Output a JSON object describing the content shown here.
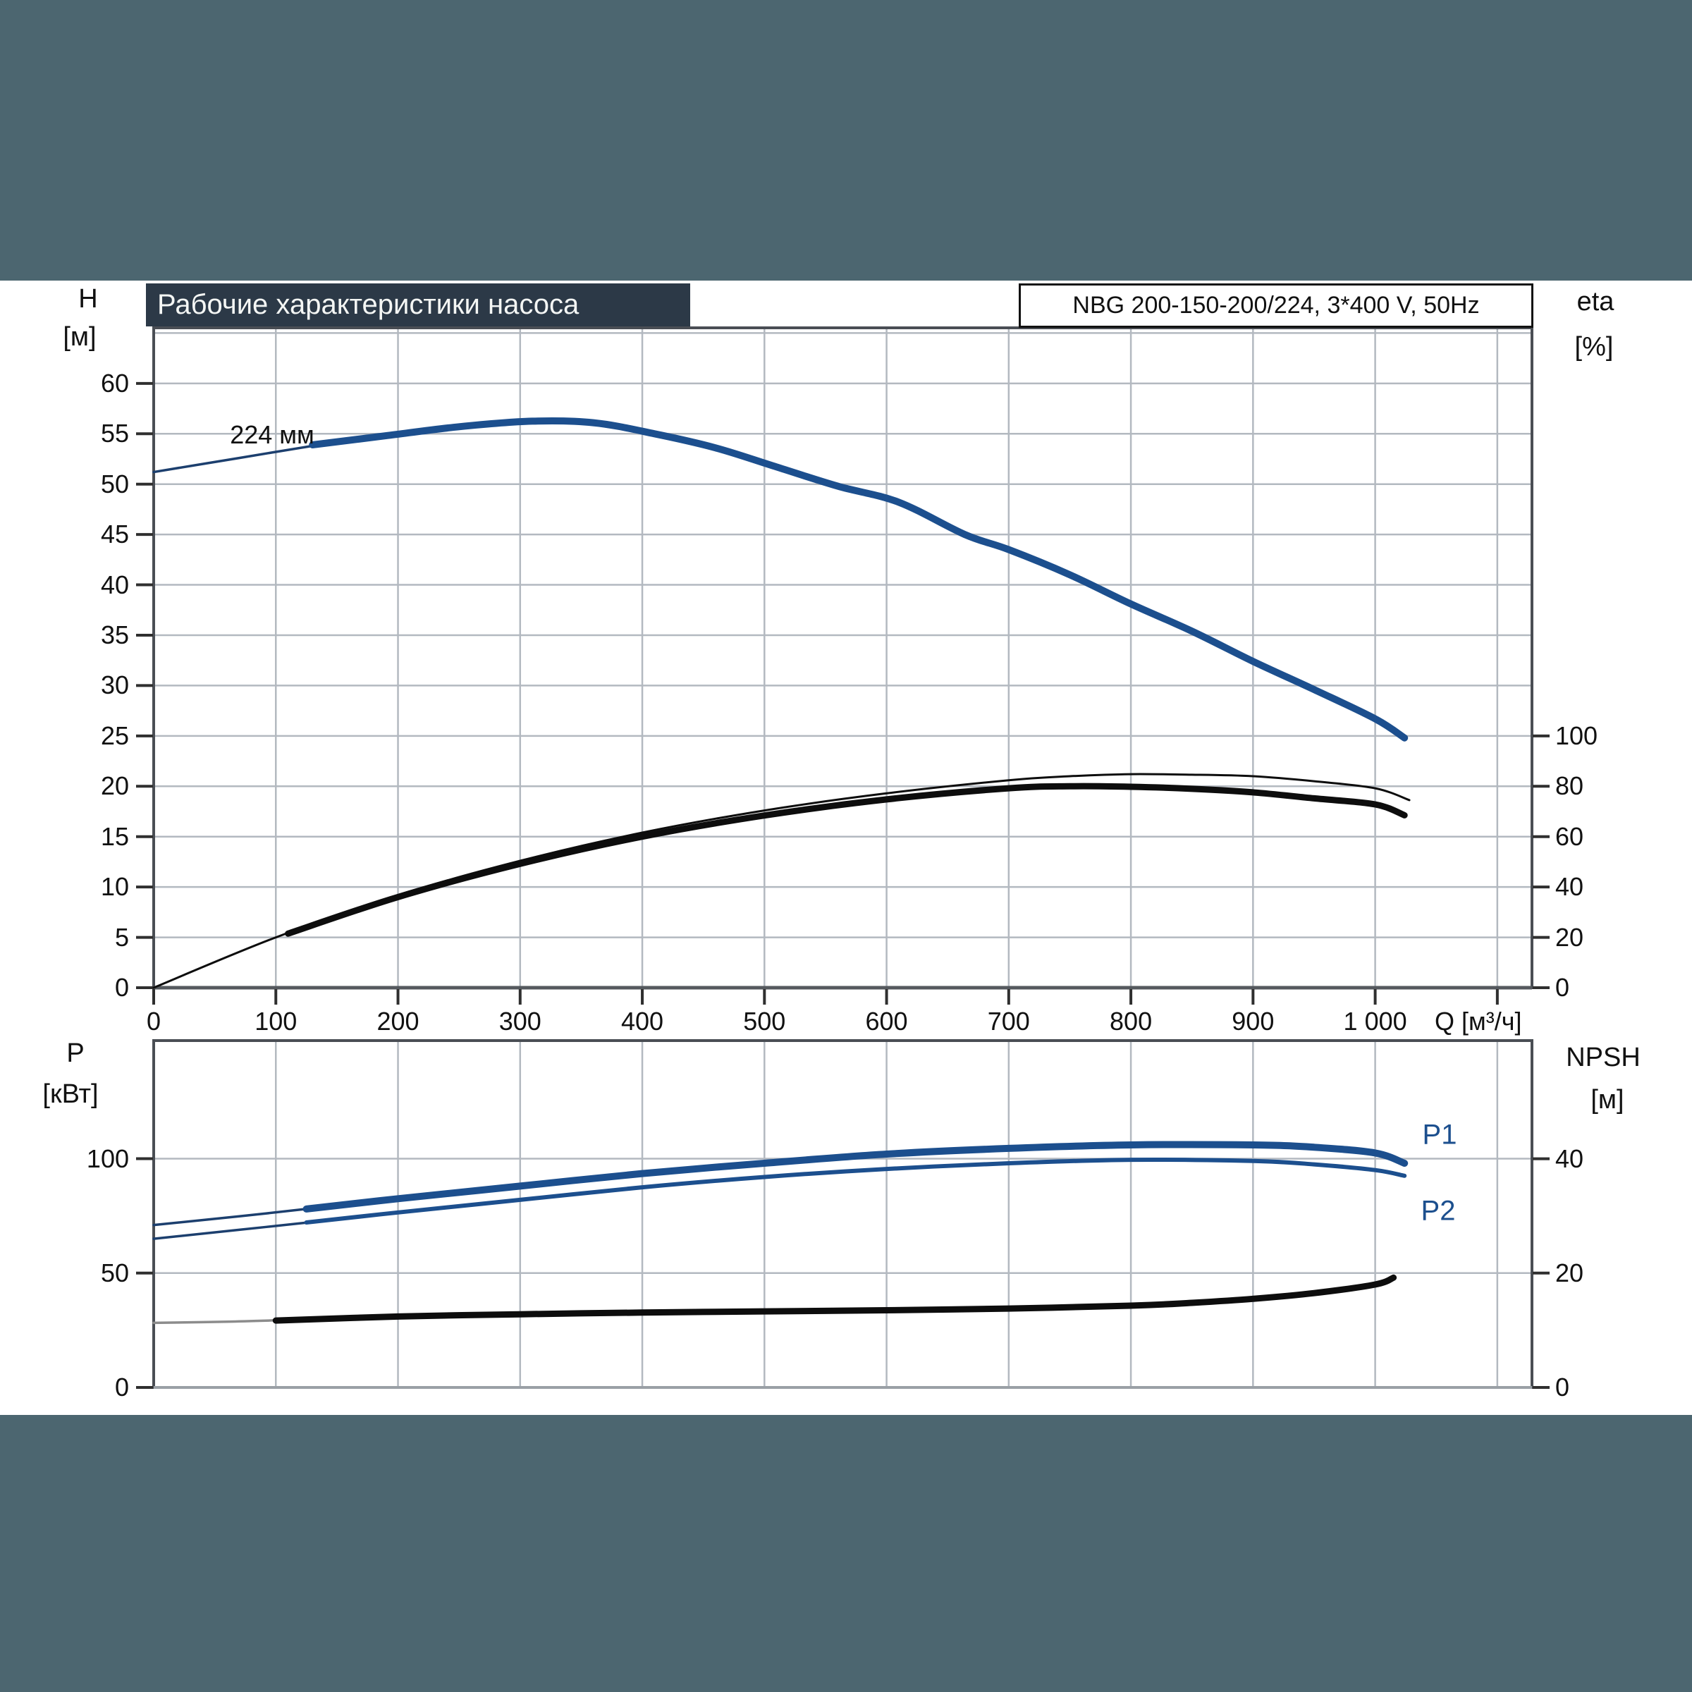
{
  "header": {
    "title": "Рабочие характеристики насоса",
    "pump_label": "NBG 200-150-200/224, 3*400 V, 50Hz"
  },
  "colors": {
    "band": "#4c6670",
    "title_bar": "#2c3947",
    "curve_blue": "#1c4f8e",
    "curve_blue_thin": "#1c3f6e",
    "curve_black": "#0d0d0d",
    "curve_gray": "#8c8c8c",
    "gridline": "#b3b9c0",
    "plot_border": "#4a4e54",
    "tick": "#2f2f2f"
  },
  "top_chart": {
    "left_axis": {
      "name": "H",
      "unit": "[м]",
      "ticks": [
        0,
        5,
        10,
        15,
        20,
        25,
        30,
        35,
        40,
        45,
        50,
        55,
        60
      ]
    },
    "right_axis": {
      "name": "eta",
      "unit": "[%]",
      "ticks": [
        0,
        20,
        40,
        60,
        80,
        100
      ]
    },
    "x_axis": {
      "ticks": [
        {
          "q": 0,
          "label": "0"
        },
        {
          "q": 100,
          "label": "100"
        },
        {
          "q": 200,
          "label": "200"
        },
        {
          "q": 300,
          "label": "300"
        },
        {
          "q": 400,
          "label": "400"
        },
        {
          "q": 500,
          "label": "500"
        },
        {
          "q": 600,
          "label": "600"
        },
        {
          "q": 700,
          "label": "700"
        },
        {
          "q": 800,
          "label": "800"
        },
        {
          "q": 900,
          "label": "900"
        },
        {
          "q": 1000,
          "label": "1 000"
        }
      ],
      "unit_label": "Q [м³/ч]"
    },
    "curve_label": "224 мм"
  },
  "bottom_chart": {
    "left_axis": {
      "name": "P",
      "unit": "[кВт]",
      "ticks": [
        0,
        50,
        100
      ]
    },
    "right_axis": {
      "name": "NPSH",
      "unit": "[м]",
      "ticks": [
        0,
        20,
        40
      ]
    },
    "p1_label": "P1",
    "p2_label": "P2"
  },
  "chart_data": [
    {
      "type": "line",
      "title": "Pump head / efficiency curves",
      "xlabel": "Q [м³/ч]",
      "x_range": [
        0,
        1128
      ],
      "y_left": {
        "label": "H [м]",
        "range": [
          0,
          65.5
        ],
        "gridstep": 5
      },
      "y_right": {
        "label": "eta [%]",
        "range": [
          0,
          100
        ]
      },
      "series": [
        {
          "name": "head-224mm-thin",
          "axis": "H",
          "style": "thin-blue",
          "points": [
            [
              0,
              51.2
            ],
            [
              70,
              52.6
            ],
            [
              140,
              54.0
            ]
          ]
        },
        {
          "name": "head-224mm",
          "axis": "H",
          "style": "thick-blue",
          "points": [
            [
              130,
              53.9
            ],
            [
              190,
              54.8
            ],
            [
              250,
              55.7
            ],
            [
              310,
              56.25
            ],
            [
              360,
              56.1
            ],
            [
              410,
              55.0
            ],
            [
              460,
              53.6
            ],
            [
              510,
              51.7
            ],
            [
              560,
              49.8
            ],
            [
              610,
              48.2
            ],
            [
              664,
              45.0
            ],
            [
              700,
              43.5
            ],
            [
              750,
              41.0
            ],
            [
              800,
              38.1
            ],
            [
              850,
              35.4
            ],
            [
              900,
              32.4
            ],
            [
              950,
              29.6
            ],
            [
              1000,
              26.7
            ],
            [
              1024,
              24.8
            ]
          ]
        },
        {
          "name": "eta-thin",
          "axis": "eta",
          "style": "thin-black",
          "points": [
            [
              0,
              0
            ],
            [
              100,
              20.0
            ],
            [
              200,
              36.8
            ],
            [
              300,
              50.4
            ],
            [
              400,
              61.6
            ],
            [
              500,
              70.4
            ],
            [
              600,
              77.2
            ],
            [
              700,
              82.4
            ],
            [
              750,
              84.0
            ],
            [
              800,
              84.8
            ],
            [
              850,
              84.6
            ],
            [
              900,
              84.0
            ],
            [
              950,
              82.0
            ],
            [
              1000,
              79.2
            ],
            [
              1028,
              74.5
            ]
          ]
        },
        {
          "name": "eta",
          "axis": "eta",
          "style": "thick-black",
          "points": [
            [
              110,
              21.5
            ],
            [
              200,
              36.0
            ],
            [
              300,
              49.2
            ],
            [
              400,
              60.0
            ],
            [
              500,
              68.4
            ],
            [
              600,
              74.8
            ],
            [
              700,
              79.2
            ],
            [
              750,
              80.0
            ],
            [
              800,
              79.8
            ],
            [
              850,
              79.0
            ],
            [
              900,
              77.6
            ],
            [
              950,
              75.2
            ],
            [
              1000,
              72.8
            ],
            [
              1024,
              68.5
            ]
          ]
        }
      ]
    },
    {
      "type": "line",
      "title": "Power / NPSH curves",
      "xlabel": "Q [м³/ч]",
      "x_range": [
        0,
        1128
      ],
      "y_left": {
        "label": "P [кВт]",
        "range": [
          0,
          151
        ],
        "gridstep": 50
      },
      "y_right": {
        "label": "NPSH [м]",
        "range": [
          0,
          60.5
        ]
      },
      "series": [
        {
          "name": "P1-thin",
          "axis": "P",
          "style": "thin-blue",
          "points": [
            [
              0,
              71
            ],
            [
              70,
              74.8
            ],
            [
              135,
              78.6
            ]
          ]
        },
        {
          "name": "P1",
          "axis": "P",
          "style": "thick-blue",
          "points": [
            [
              125,
              78
            ],
            [
              200,
              82.5
            ],
            [
              300,
              88
            ],
            [
              400,
              93.5
            ],
            [
              500,
              98
            ],
            [
              600,
              102
            ],
            [
              700,
              104.5
            ],
            [
              800,
              106
            ],
            [
              900,
              106
            ],
            [
              950,
              105
            ],
            [
              1000,
              102.5
            ],
            [
              1024,
              98
            ]
          ]
        },
        {
          "name": "P2-thin",
          "axis": "P",
          "style": "thin-blue",
          "points": [
            [
              0,
              65
            ],
            [
              70,
              68.9
            ],
            [
              135,
              72.6
            ]
          ]
        },
        {
          "name": "P2",
          "axis": "P",
          "style": "mid-blue",
          "points": [
            [
              125,
              72.1
            ],
            [
              200,
              76.5
            ],
            [
              300,
              82
            ],
            [
              400,
              87.5
            ],
            [
              500,
              92
            ],
            [
              600,
              95.5
            ],
            [
              700,
              98
            ],
            [
              800,
              99.5
            ],
            [
              900,
              99
            ],
            [
              950,
              97.5
            ],
            [
              1000,
              95
            ],
            [
              1024,
              92.5
            ]
          ]
        },
        {
          "name": "NPSH-thin",
          "axis": "NPSH",
          "style": "thin-gray",
          "points": [
            [
              0,
              11.3
            ],
            [
              60,
              11.5
            ],
            [
              110,
              11.8
            ]
          ]
        },
        {
          "name": "NPSH",
          "axis": "NPSH",
          "style": "thick-black",
          "points": [
            [
              100,
              11.7
            ],
            [
              200,
              12.4
            ],
            [
              300,
              12.8
            ],
            [
              400,
              13.1
            ],
            [
              500,
              13.3
            ],
            [
              600,
              13.5
            ],
            [
              700,
              13.8
            ],
            [
              800,
              14.3
            ],
            [
              850,
              14.8
            ],
            [
              900,
              15.5
            ],
            [
              950,
              16.5
            ],
            [
              1000,
              18.0
            ],
            [
              1015,
              19.2
            ]
          ]
        }
      ]
    }
  ]
}
